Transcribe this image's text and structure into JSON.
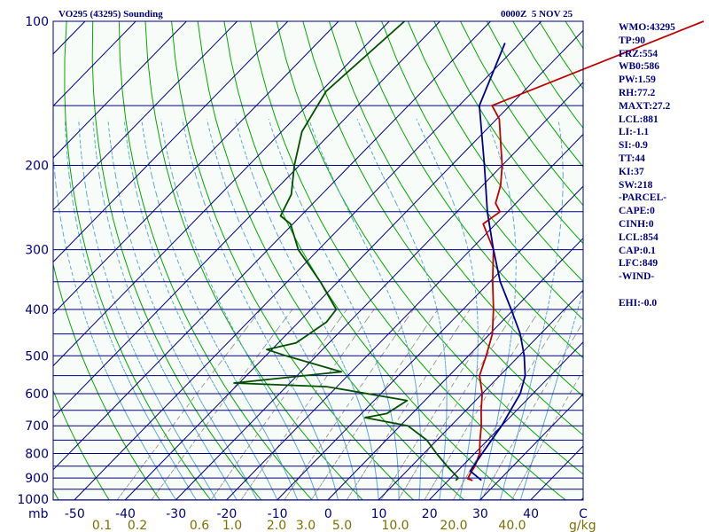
{
  "header": {
    "station": "VO295 (43295) Sounding",
    "time": "0000Z  5 NOV 25"
  },
  "stats": [
    "WMO:43295",
    "TP:90",
    "FRZ:554",
    "WB0:586",
    "PW:1.59",
    "RH:77.2",
    "MAXT:27.2",
    "LCL:881",
    "LI:-1.1",
    "SI:-0.9",
    "TT:44",
    "KI:37",
    "SW:218",
    "-PARCEL-",
    "CAPE:0",
    "CINH:0",
    "LCL:854",
    "CAP:0.1",
    "LFC:849",
    "-WIND-",
    "",
    "EHI:-0.0"
  ],
  "chart_data": {
    "type": "line",
    "subtype": "skew-T log-P sounding",
    "y_unit": "mb",
    "x_unit": "C",
    "mixing_ratio_unit": "g/kg",
    "pressure_labels": [
      100,
      200,
      300,
      400,
      500,
      600,
      700,
      800,
      900,
      1000
    ],
    "temperature_labels": [
      -50,
      -40,
      -30,
      -20,
      -10,
      0,
      10,
      20,
      30,
      40
    ],
    "mixing_ratio_labels": [
      "0.1",
      "0.2",
      "0.6",
      "1.0",
      "2.0",
      "3.0",
      "5.0",
      "10.0",
      "20.0",
      "40.0"
    ],
    "ylim": [
      1000,
      100
    ],
    "series": [
      {
        "name": "Temperature",
        "color": "#c00000",
        "points": [
          [
            100,
            -18.0
          ],
          [
            150,
            -43.5
          ],
          [
            160,
            -39.5
          ],
          [
            180,
            -34.5
          ],
          [
            200,
            -30.0
          ],
          [
            220,
            -26.5
          ],
          [
            240,
            -24.0
          ],
          [
            250,
            -21.5
          ],
          [
            265,
            -22.5
          ],
          [
            300,
            -15.5
          ],
          [
            350,
            -9.5
          ],
          [
            400,
            -4.0
          ],
          [
            450,
            0.5
          ],
          [
            500,
            3.5
          ],
          [
            550,
            6.0
          ],
          [
            600,
            10.0
          ],
          [
            650,
            13.0
          ],
          [
            700,
            16.0
          ],
          [
            750,
            18.5
          ],
          [
            800,
            21.0
          ],
          [
            850,
            22.5
          ],
          [
            880,
            23.0
          ],
          [
            903,
            23.5
          ],
          [
            911,
            24.8
          ]
        ]
      },
      {
        "name": "Dewpoint",
        "color": "#005000",
        "points": [
          [
            100,
            -77.0
          ],
          [
            140,
            -79.0
          ],
          [
            170,
            -76.0
          ],
          [
            200,
            -71.0
          ],
          [
            230,
            -66.0
          ],
          [
            255,
            -64.0
          ],
          [
            265,
            -60.5
          ],
          [
            300,
            -54.0
          ],
          [
            350,
            -43.5
          ],
          [
            400,
            -35.0
          ],
          [
            425,
            -34.5
          ],
          [
            470,
            -36.5
          ],
          [
            485,
            -41.0
          ],
          [
            500,
            -36.0
          ],
          [
            540,
            -22.0
          ],
          [
            570,
            -41.0
          ],
          [
            580,
            -22.0
          ],
          [
            620,
            -3.5
          ],
          [
            660,
            -5.0
          ],
          [
            673,
            -8.5
          ],
          [
            700,
            1.5
          ],
          [
            750,
            8.0
          ],
          [
            800,
            12.5
          ],
          [
            850,
            17.0
          ],
          [
            900,
            21.5
          ],
          [
            911,
            21.5
          ]
        ]
      },
      {
        "name": "Parcel",
        "color": "#000090",
        "points": [
          [
            111,
            -53.0
          ],
          [
            150,
            -46.0
          ],
          [
            200,
            -33.5
          ],
          [
            250,
            -24.0
          ],
          [
            300,
            -15.5
          ],
          [
            350,
            -8.0
          ],
          [
            400,
            -0.5
          ],
          [
            450,
            6.0
          ],
          [
            500,
            11.0
          ],
          [
            550,
            15.0
          ],
          [
            600,
            17.5
          ],
          [
            700,
            20.0
          ],
          [
            800,
            21.5
          ],
          [
            870,
            22.5
          ],
          [
            910,
            26.5
          ]
        ]
      }
    ],
    "grid": true,
    "colors": {
      "background": "#f8fcf8",
      "frame": "#000080",
      "isobar": "#000080",
      "isotherm": "#000080",
      "dry_adiabat": "#00aa00",
      "moist_adiabat": "#5aa8d8",
      "mixing_ratio": "#888888",
      "label": "#000080",
      "mixing_label": "#7a7000"
    }
  }
}
